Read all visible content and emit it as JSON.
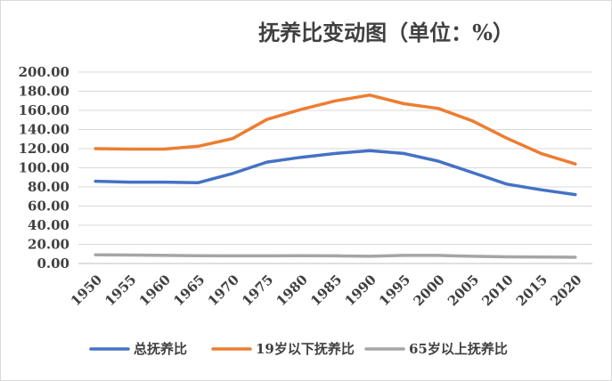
{
  "chart_data": {
    "type": "line",
    "title": "抚养比变动图（单位：%）",
    "categories": [
      "1950",
      "1955",
      "1960",
      "1965",
      "1970",
      "1975",
      "1980",
      "1985",
      "1990",
      "1995",
      "2000",
      "2005",
      "2010",
      "2015",
      "2020"
    ],
    "ylim": [
      0,
      200
    ],
    "yticks": [
      "0.00",
      "20.00",
      "40.00",
      "60.00",
      "80.00",
      "100.00",
      "120.00",
      "140.00",
      "160.00",
      "180.00",
      "200.00"
    ],
    "grid": true,
    "legend_position": "bottom",
    "series": [
      {
        "name": "总抚养比",
        "color": "#4472c4",
        "values": [
          86,
          85,
          85,
          84.5,
          94,
          106,
          111,
          115,
          118,
          115,
          107,
          95,
          83,
          77,
          72
        ]
      },
      {
        "name": "19岁以下抚养比",
        "color": "#ed7d31",
        "values": [
          120,
          119.5,
          119.5,
          122.5,
          130.5,
          150.5,
          161,
          170,
          176,
          167,
          162,
          149,
          131,
          115,
          104
        ]
      },
      {
        "name": "65岁以上抚养比",
        "color": "#a5a5a5",
        "values": [
          9,
          8.8,
          8.5,
          8.2,
          8,
          8,
          8.2,
          8,
          7.5,
          8.5,
          8.5,
          7.5,
          7,
          6.8,
          6.5
        ]
      }
    ]
  }
}
